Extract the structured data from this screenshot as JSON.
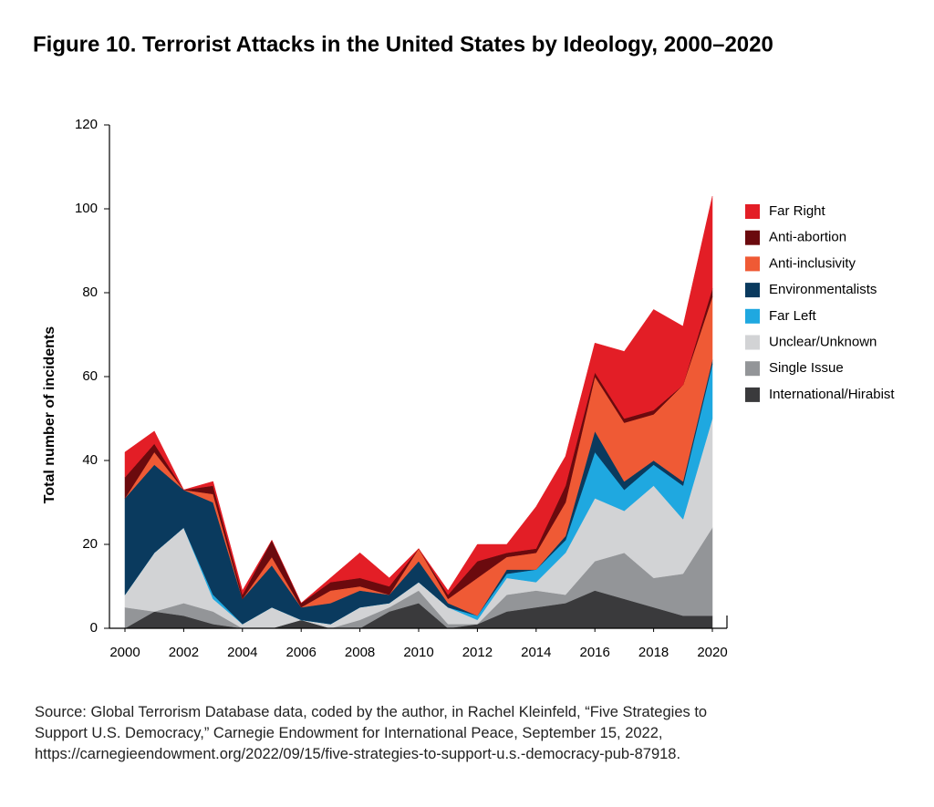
{
  "chart_data": {
    "type": "stacked-area",
    "title": "Figure 10. Terrorist Attacks in the United States by Ideology, 2000–2020",
    "y_label": "Total number of incidents",
    "source": "Source: Global Terrorism Database data, coded by the author, in Rachel Kleinfeld, “Five Strategies to Support U.S. Democracy,” Carnegie Endowment for International Peace, September 15, 2022, https://carnegieendowment.org/2022/09/15/five-strategies-to-support-u.s.-democracy-pub-87918.",
    "x": [
      2000,
      2001,
      2002,
      2003,
      2004,
      2005,
      2006,
      2007,
      2008,
      2009,
      2010,
      2011,
      2012,
      2013,
      2014,
      2015,
      2016,
      2017,
      2018,
      2019,
      2020
    ],
    "xlim": [
      2000,
      2020
    ],
    "xticks": [
      2000,
      2002,
      2004,
      2006,
      2008,
      2010,
      2012,
      2014,
      2016,
      2018,
      2020
    ],
    "ylim": [
      0,
      120
    ],
    "yticks": [
      0,
      20,
      40,
      60,
      80,
      100,
      120
    ],
    "legend": "right",
    "series": [
      {
        "name": "International/Hirabist",
        "color": "#3a3a3c",
        "values": [
          0,
          4,
          3,
          1,
          0,
          0,
          2,
          0,
          0,
          4,
          6,
          0,
          1,
          4,
          5,
          6,
          9,
          7,
          5,
          3,
          3
        ]
      },
      {
        "name": "Single Issue",
        "color": "#939598",
        "values": [
          5,
          0,
          3,
          3,
          0,
          0,
          0,
          0,
          2,
          1,
          3,
          1,
          0,
          4,
          4,
          2,
          7,
          11,
          7,
          10,
          21
        ]
      },
      {
        "name": "Unclear/Unknown",
        "color": "#d2d3d5",
        "values": [
          3,
          14,
          18,
          3,
          1,
          5,
          0,
          1,
          3,
          1,
          2,
          4,
          1,
          4,
          2,
          10,
          15,
          10,
          22,
          13,
          26
        ]
      },
      {
        "name": "Far Left",
        "color": "#1fa8e0",
        "values": [
          0,
          0,
          0,
          1,
          0,
          0,
          0,
          0,
          0,
          0,
          0,
          0,
          1,
          1,
          3,
          3,
          11,
          5,
          5,
          8,
          13
        ]
      },
      {
        "name": "Environmentalists",
        "color": "#0a3a5e",
        "values": [
          23,
          21,
          9,
          22,
          6,
          10,
          3,
          5,
          4,
          2,
          5,
          1,
          0,
          1,
          0,
          1,
          5,
          2,
          1,
          1,
          1
        ]
      },
      {
        "name": "Anti-inclusivity",
        "color": "#ef5a35",
        "values": [
          0,
          3,
          0,
          2,
          0,
          2,
          0,
          3,
          1,
          0,
          3,
          1,
          9,
          3,
          4,
          8,
          13,
          14,
          11,
          23,
          15
        ]
      },
      {
        "name": "Anti-abortion",
        "color": "#6b0a0e",
        "values": [
          5,
          2,
          0,
          2,
          1,
          4,
          1,
          2,
          2,
          2,
          0,
          1,
          4,
          1,
          1,
          4,
          1,
          1,
          1,
          0,
          2
        ]
      },
      {
        "name": "Far Right",
        "color": "#e31e26",
        "values": [
          6,
          3,
          0,
          1,
          1,
          0,
          0,
          1,
          6,
          2,
          0,
          1,
          4,
          2,
          10,
          7,
          7,
          16,
          24,
          14,
          22
        ]
      }
    ]
  }
}
